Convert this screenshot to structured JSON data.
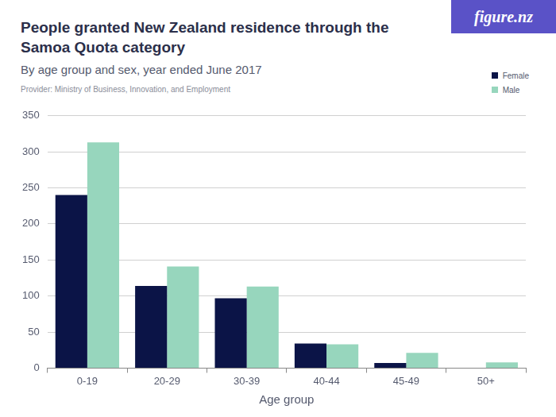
{
  "chart_data": {
    "type": "bar",
    "title": "People granted New Zealand residence through the Samoa Quota category",
    "subtitle": "By age group and sex, year ended June 2017",
    "source": "Provider: Ministry of Business, Innovation, and Employment",
    "brand": "figure.nz",
    "x_label": "Age group",
    "categories": [
      "0-19",
      "20-29",
      "30-39",
      "40-44",
      "45-49",
      "50+"
    ],
    "series": [
      {
        "name": "Female",
        "color": "#0b1447",
        "values": [
          240,
          114,
          97,
          34,
          7,
          0
        ]
      },
      {
        "name": "Male",
        "color": "#97d6bd",
        "values": [
          313,
          141,
          113,
          33,
          21,
          8
        ]
      }
    ],
    "ylim": [
      0,
      350
    ],
    "yticks": [
      0,
      50,
      100,
      150,
      200,
      250,
      300,
      350
    ],
    "grid": true,
    "legend": "top-right"
  }
}
